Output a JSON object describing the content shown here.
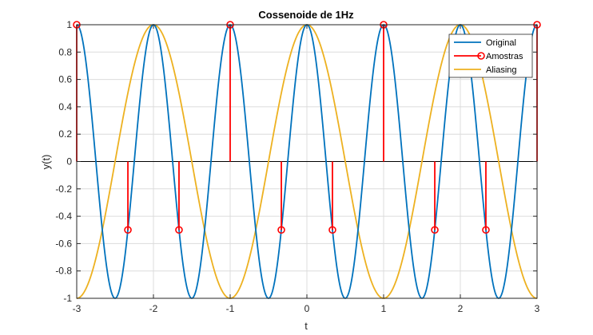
{
  "chart_data": {
    "type": "line",
    "title": "Cossenoide de 1Hz",
    "xlabel": "t",
    "ylabel": "y(t)",
    "xlim": [
      -3,
      3
    ],
    "ylim": [
      -1,
      1
    ],
    "x_ticks": [
      "-3",
      "-2",
      "-1",
      "0",
      "1",
      "2",
      "3"
    ],
    "y_ticks": [
      "-1",
      "-0.8",
      "-0.6",
      "-0.4",
      "-0.2",
      "0",
      "0.2",
      "0.4",
      "0.6",
      "0.8",
      "1"
    ],
    "grid": true,
    "legend_position": "top-right",
    "series": [
      {
        "name": "Original",
        "kind": "line",
        "color": "#0072BD",
        "frequency_hz": 1,
        "function": "cos"
      },
      {
        "name": "Amostras",
        "kind": "stem",
        "color": "#FF0000",
        "x": [
          -3,
          -2.333,
          -1.667,
          -1,
          -0.333,
          0.333,
          1,
          1.667,
          2.333,
          3
        ],
        "y": [
          1,
          -0.5,
          -0.5,
          1,
          -0.5,
          -0.5,
          1,
          -0.5,
          -0.5,
          1
        ]
      },
      {
        "name": "Aliasing",
        "kind": "line",
        "color": "#EDB120",
        "frequency_hz": 0.5,
        "function": "cos"
      }
    ]
  }
}
